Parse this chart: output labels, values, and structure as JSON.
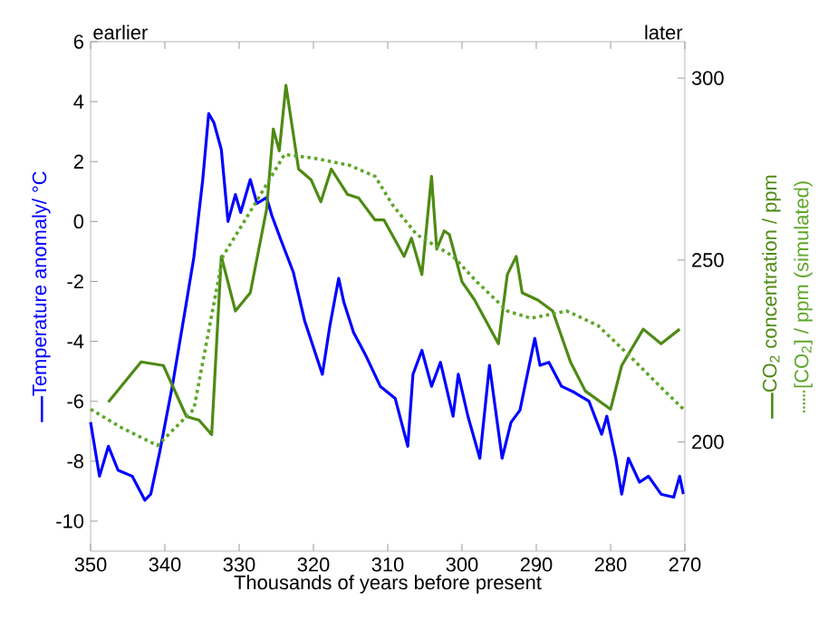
{
  "chart_data": {
    "type": "line",
    "xlabel": "Thousands of years before present",
    "ylabel": "Temperature anomaly/ °C",
    "y2label": "CO$_{2}$ concentration / ppm",
    "annotations": [
      "earlier",
      "later"
    ],
    "xlim": [
      350,
      270
    ],
    "xticks": [
      350,
      340,
      330,
      320,
      310,
      300,
      290,
      280,
      270
    ],
    "ylim": [
      -11,
      6
    ],
    "yticks": [
      -10,
      -8,
      -6,
      -4,
      -2,
      0,
      2,
      4,
      6
    ],
    "y2lim": [
      170,
      310
    ],
    "y2ticks": [
      200,
      250,
      300
    ],
    "series": [
      {
        "color": "#0000ff",
        "line_style": "solid",
        "x": [
          350,
          348.8,
          347.6,
          346.3,
          344.4,
          342.7,
          341.9,
          340.7,
          339,
          337.3,
          336.1,
          334.9,
          334.1,
          333.4,
          332.4,
          331.5,
          330.5,
          329.8,
          328.5,
          327.6,
          326.3,
          325.6,
          324.4,
          322.7,
          321.2,
          320,
          318.8,
          317.8,
          316.6,
          315.9,
          314.6,
          312.9,
          311,
          309,
          307.3,
          306.6,
          305.4,
          304.1,
          302.9,
          301.2,
          300.5,
          299.2,
          297.6,
          296.3,
          294.6,
          293.4,
          292.2,
          290.2,
          289.5,
          288.3,
          286.6,
          284.9,
          282.9,
          281.2,
          280.5,
          279.3,
          278.5,
          277.6,
          276.1,
          274.9,
          273.2,
          271.5,
          270.7,
          270.2
        ],
        "values": [
          -6.7,
          -8.5,
          -7.5,
          -8.3,
          -8.5,
          -9.3,
          -9.1,
          -7.7,
          -5.5,
          -3.0,
          -1.2,
          1.4,
          3.6,
          3.3,
          2.4,
          0.0,
          0.9,
          0.3,
          1.4,
          0.6,
          0.8,
          0.2,
          -0.6,
          -1.7,
          -3.3,
          -4.2,
          -5.1,
          -3.5,
          -1.9,
          -2.7,
          -3.7,
          -4.5,
          -5.5,
          -5.9,
          -7.5,
          -5.1,
          -4.3,
          -5.5,
          -4.7,
          -6.5,
          -5.1,
          -6.5,
          -7.9,
          -4.8,
          -7.9,
          -6.7,
          -6.3,
          -3.9,
          -4.8,
          -4.7,
          -5.5,
          -5.7,
          -6.0,
          -7.1,
          -6.5,
          -7.9,
          -9.1,
          -7.9,
          -8.7,
          -8.5,
          -9.1,
          -9.2,
          -8.5,
          -9.1
        ]
      },
      {
        "color": "#4e8a14",
        "axis": "y2",
        "line_style": "solid",
        "x": [
          347.6,
          343.2,
          340.2,
          337.1,
          335.4,
          333.7,
          332.4,
          330.5,
          328.5,
          326.3,
          325.4,
          324.6,
          323.7,
          322,
          320.3,
          319,
          317.6,
          315.4,
          313.9,
          311.7,
          310.5,
          307.8,
          306.8,
          305.4,
          304.1,
          303.4,
          302.4,
          301.7,
          300,
          298.3,
          295.1,
          293.9,
          292.7,
          291.9,
          289.8,
          287.8,
          285.4,
          283.4,
          280,
          278.5,
          275.6,
          273.2,
          270.7
        ],
        "values": [
          211,
          222,
          221,
          207,
          206,
          202,
          251,
          236,
          241,
          264,
          286,
          280,
          298,
          275,
          272,
          266,
          275,
          268,
          267,
          261,
          261,
          251,
          256,
          246,
          273,
          253,
          258,
          257,
          244,
          239,
          227,
          246,
          251,
          241,
          239,
          236,
          222,
          214,
          209,
          221,
          231,
          227,
          231
        ]
      },
      {
        "name": "[CO$_{2}$] / ppm (simulated)",
        "color": "#5ea62a",
        "axis": "y2",
        "line_style": "dotted",
        "x": [
          350,
          345.9,
          341,
          336.1,
          332.2,
          328,
          323.9,
          320,
          315.1,
          311.7,
          309.3,
          306.1,
          301.2,
          298,
          293.9,
          290.7,
          285.9,
          281.7,
          277.6,
          273.7,
          270.2
        ],
        "values": [
          209,
          204,
          199,
          209,
          251,
          265,
          279,
          278,
          276,
          273,
          265,
          257,
          251,
          244,
          236,
          234,
          236,
          232,
          224,
          216,
          209
        ]
      }
    ]
  }
}
